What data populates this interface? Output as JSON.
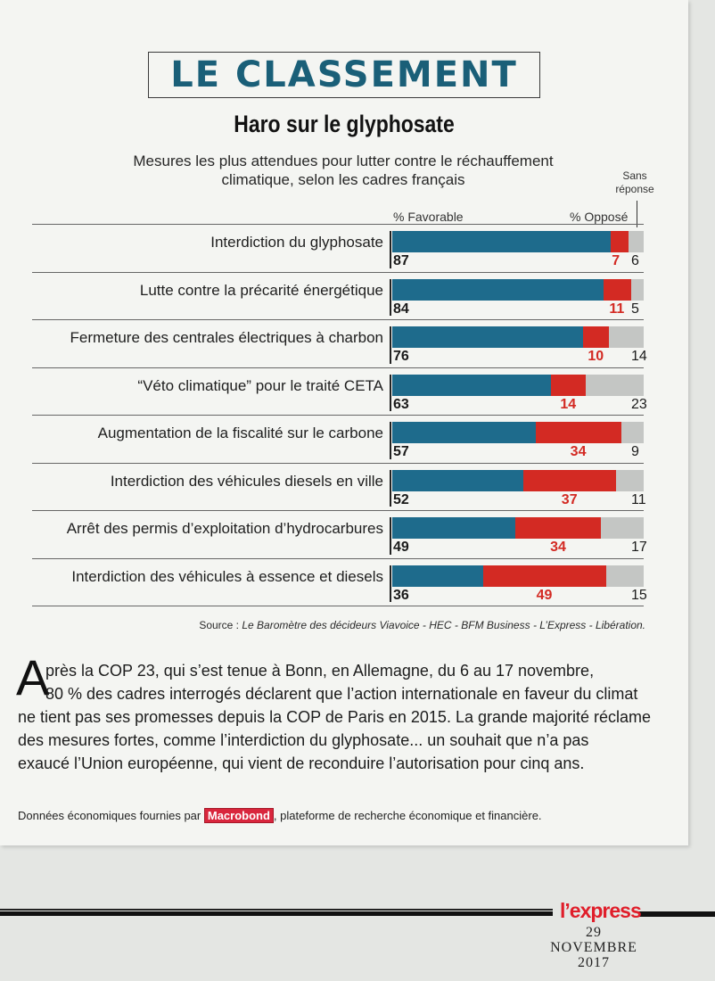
{
  "header": {
    "section_title": "LE CLASSEMENT"
  },
  "chart_data": {
    "type": "bar",
    "stacked": true,
    "orientation": "horizontal",
    "title": "Haro sur le glyphosate",
    "subtitle": "Mesures les plus attendues pour lutter contre le réchauffement climatique, selon les cadres français",
    "series_headers": {
      "favorable": "% Favorable",
      "oppose": "% Opposé",
      "sans_reponse": "Sans réponse"
    },
    "categories": [
      "Interdiction du glyphosate",
      "Lutte contre la précarité énergétique",
      "Fermeture des centrales électriques à charbon",
      "“Véto climatique” pour le traité CETA",
      "Augmentation de la fiscalité sur le carbone",
      "Interdiction des véhicules diesels en ville",
      "Arrêt des permis d’exploitation d’hydrocarbures",
      "Interdiction des véhicules à essence et diesels"
    ],
    "series": [
      {
        "name": "% Favorable",
        "color": "#1e6b8c",
        "values": [
          87,
          84,
          76,
          63,
          57,
          52,
          49,
          36
        ]
      },
      {
        "name": "% Opposé",
        "color": "#d32a23",
        "values": [
          7,
          11,
          10,
          14,
          34,
          37,
          34,
          49
        ]
      },
      {
        "name": "Sans réponse",
        "color": "#c4c6c4",
        "values": [
          6,
          5,
          14,
          23,
          9,
          11,
          17,
          15
        ]
      }
    ],
    "xlim": [
      0,
      100
    ],
    "source_prefix": "Source : ",
    "source_text": "Le Baromètre des décideurs Viavoice - HEC - BFM Business - L’Express - Libération."
  },
  "article": {
    "dropcap": "A",
    "lines": [
      "près la COP 23, qui s’est tenue à Bonn, en Allemagne, du 6 au 17 novembre,",
      "80 % des cadres interrogés déclarent que l’action internationale en faveur du climat",
      "ne tient pas ses promesses depuis la COP de Paris en 2015. La grande majorité réclame",
      "des mesures fortes, comme l’interdiction du glyphosate... un souhait que n’a pas",
      "exaucé l’Union européenne, qui vient de reconduire l’autorisation pour cinq ans."
    ]
  },
  "footer": {
    "note_before": "Données économiques fournies par ",
    "brand": "Macrobond",
    "note_after": ", plateforme de recherche économique et financière.",
    "magazine": "l’express",
    "date_day": "29",
    "date_month": "NOVEMBRE",
    "date_year": "2017"
  }
}
